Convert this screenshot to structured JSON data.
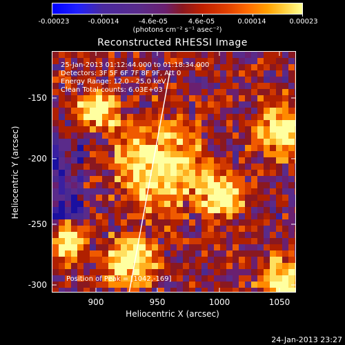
{
  "colorbar": {
    "tick_labels": [
      "-0.00023",
      "-0.00014",
      "-4.6e-05",
      "4.6e-05",
      "0.00014",
      "0.00023"
    ],
    "units": "(photons cm⁻² s⁻¹ asec⁻²)"
  },
  "title": "Reconstructed RHESSI Image",
  "annotations": {
    "time_range": "25-Jan-2013 01:12:44.000 to 01:18:34.000",
    "detectors": "Detectors: 3F 5F 6F 7F 8F 9F, Att 0",
    "energy_range": "Energy Range: 12.0 - 25.0 keV",
    "clean": "Clean     Total counts: 6.03E+03",
    "peak": "Position of Peak = [1042,-169]"
  },
  "axes": {
    "x_label": "Heliocentric X (arcsec)",
    "y_label": "Heliocentric Y (arcsec)",
    "x_ticks": [
      "900",
      "950",
      "1000",
      "1050"
    ],
    "y_ticks": [
      "-150",
      "-200",
      "-250",
      "-300"
    ]
  },
  "timestamp": "24-Jan-2013 23:27"
}
